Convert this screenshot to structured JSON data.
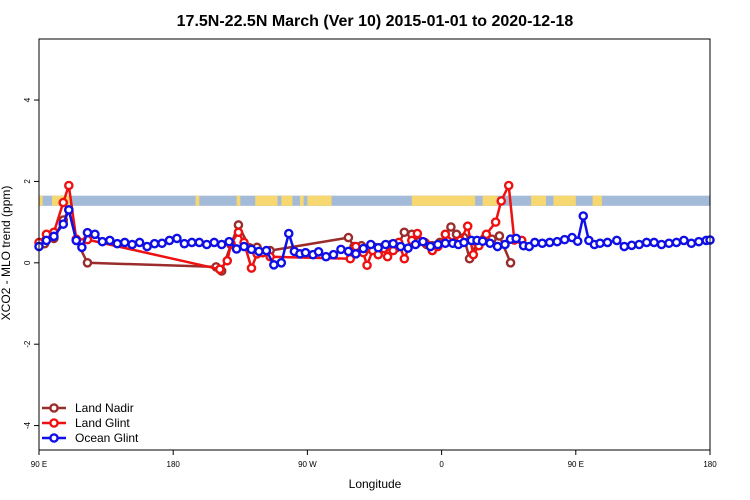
{
  "chart_data": {
    "type": "line",
    "title": "17.5N-22.5N March (Ver 10)   2015-01-01 to 2020-12-18",
    "xlabel": "Longitude",
    "ylabel": "XCO2 - MLO trend (ppm)",
    "xlim": [
      -180,
      180
    ],
    "ylim": [
      -4.6,
      5.5
    ],
    "x_ticks": [
      {
        "value": -180,
        "label": "90 E"
      },
      {
        "value": -108,
        "label": "180"
      },
      {
        "value": -36,
        "label": "90 W"
      },
      {
        "value": 36,
        "label": "0"
      },
      {
        "value": 108,
        "label": "90 E"
      },
      {
        "value": 180,
        "label": "180"
      }
    ],
    "y_ticks": [
      {
        "value": -4,
        "label": "-4"
      },
      {
        "value": -2,
        "label": "-2"
      },
      {
        "value": 0,
        "label": "0"
      },
      {
        "value": 2,
        "label": "2"
      },
      {
        "value": 4,
        "label": "4"
      }
    ],
    "grid": false,
    "legend_position": "bottom-left",
    "land_mask": {
      "y_range": [
        1.4,
        1.65
      ],
      "ocean_color": "#a3bad9",
      "land_color": "#f7d76f",
      "land_segments": [
        [
          -180,
          -178
        ],
        [
          -173,
          -163
        ],
        [
          -96,
          -94
        ],
        [
          -74,
          -72
        ],
        [
          -64,
          -52
        ],
        [
          -50,
          -44
        ],
        [
          -40,
          -38
        ],
        [
          -36,
          -27
        ],
        [
          -28,
          -23
        ],
        [
          20,
          54
        ],
        [
          58,
          66
        ],
        [
          84,
          92
        ],
        [
          96,
          108
        ],
        [
          117,
          122
        ]
      ]
    },
    "series": [
      {
        "name": "Land Nadir",
        "color": "#9b2c2c",
        "points": [
          [
            -177,
            0.47
          ],
          [
            -172,
            0.6
          ],
          [
            -167,
            1.05
          ],
          [
            -164,
            1.3
          ],
          [
            -160,
            0.55
          ],
          [
            -154,
            0.0
          ],
          [
            -85,
            -0.1
          ],
          [
            -82,
            -0.2
          ],
          [
            -77,
            0.45
          ],
          [
            -73,
            0.93
          ],
          [
            -67,
            0.37
          ],
          [
            -63,
            0.38
          ],
          [
            -60,
            0.25
          ],
          [
            -56,
            0.3
          ],
          [
            -14,
            0.62
          ],
          [
            -11,
            0.4
          ],
          [
            -7,
            0.42
          ],
          [
            -3,
            0.35
          ],
          [
            0,
            0.38
          ],
          [
            3,
            0.37
          ],
          [
            6,
            0.38
          ],
          [
            9,
            0.45
          ],
          [
            12,
            0.38
          ],
          [
            16,
            0.75
          ],
          [
            20,
            0.7
          ],
          [
            24,
            0.52
          ],
          [
            28,
            0.45
          ],
          [
            31,
            0.42
          ],
          [
            35,
            0.5
          ],
          [
            41,
            0.88
          ],
          [
            44,
            0.7
          ],
          [
            48,
            0.62
          ],
          [
            51,
            0.1
          ],
          [
            55,
            0.5
          ],
          [
            59,
            0.6
          ],
          [
            63,
            0.58
          ],
          [
            67,
            0.66
          ],
          [
            73,
            0.0
          ]
        ]
      },
      {
        "name": "Land Glint",
        "color": "#ee1111",
        "points": [
          [
            -180,
            0.5
          ],
          [
            -176,
            0.7
          ],
          [
            -172,
            0.75
          ],
          [
            -167,
            1.48
          ],
          [
            -164,
            1.9
          ],
          [
            -160,
            0.58
          ],
          [
            -154,
            0.57
          ],
          [
            -83,
            -0.16
          ],
          [
            -79,
            0.05
          ],
          [
            -77,
            0.47
          ],
          [
            -73,
            0.75
          ],
          [
            -70,
            0.5
          ],
          [
            -66,
            -0.13
          ],
          [
            -63,
            0.22
          ],
          [
            -60,
            0.25
          ],
          [
            -56,
            0.15
          ],
          [
            -13,
            0.1
          ],
          [
            -10,
            0.4
          ],
          [
            -6,
            0.25
          ],
          [
            -4,
            -0.06
          ],
          [
            -1,
            0.3
          ],
          [
            2,
            0.2
          ],
          [
            5,
            0.35
          ],
          [
            7,
            0.15
          ],
          [
            10,
            0.3
          ],
          [
            13,
            0.5
          ],
          [
            16,
            0.1
          ],
          [
            20,
            0.55
          ],
          [
            23,
            0.72
          ],
          [
            27,
            0.5
          ],
          [
            31,
            0.3
          ],
          [
            34,
            0.4
          ],
          [
            38,
            0.7
          ],
          [
            43,
            0.5
          ],
          [
            46,
            0.55
          ],
          [
            50,
            0.9
          ],
          [
            53,
            0.2
          ],
          [
            56,
            0.42
          ],
          [
            60,
            0.7
          ],
          [
            65,
            1.0
          ],
          [
            68,
            1.52
          ],
          [
            72,
            1.9
          ],
          [
            75,
            0.56
          ],
          [
            79,
            0.55
          ]
        ]
      },
      {
        "name": "Ocean Glint",
        "color": "#0f0fe6",
        "points": [
          [
            -180,
            0.4
          ],
          [
            -176,
            0.55
          ],
          [
            -172,
            0.65
          ],
          [
            -167,
            0.95
          ],
          [
            -164,
            1.3
          ],
          [
            -160,
            0.55
          ],
          [
            -157,
            0.38
          ],
          [
            -154,
            0.74
          ],
          [
            -150,
            0.7
          ],
          [
            -146,
            0.52
          ],
          [
            -142,
            0.55
          ],
          [
            -138,
            0.47
          ],
          [
            -134,
            0.5
          ],
          [
            -130,
            0.45
          ],
          [
            -126,
            0.5
          ],
          [
            -122,
            0.4
          ],
          [
            -118,
            0.47
          ],
          [
            -114,
            0.48
          ],
          [
            -110,
            0.55
          ],
          [
            -106,
            0.6
          ],
          [
            -102,
            0.47
          ],
          [
            -98,
            0.5
          ],
          [
            -94,
            0.5
          ],
          [
            -90,
            0.45
          ],
          [
            -86,
            0.5
          ],
          [
            -82,
            0.45
          ],
          [
            -78,
            0.52
          ],
          [
            -74,
            0.34
          ],
          [
            -70,
            0.4
          ],
          [
            -66,
            0.33
          ],
          [
            -62,
            0.28
          ],
          [
            -58,
            0.3
          ],
          [
            -54,
            -0.05
          ],
          [
            -50,
            0.0
          ],
          [
            -46,
            0.72
          ],
          [
            -43,
            0.28
          ],
          [
            -40,
            0.22
          ],
          [
            -37,
            0.25
          ],
          [
            -33,
            0.2
          ],
          [
            -30,
            0.27
          ],
          [
            -26,
            0.15
          ],
          [
            -22,
            0.2
          ],
          [
            -18,
            0.33
          ],
          [
            -14,
            0.28
          ],
          [
            -10,
            0.22
          ],
          [
            -6,
            0.35
          ],
          [
            -2,
            0.45
          ],
          [
            2,
            0.37
          ],
          [
            6,
            0.45
          ],
          [
            10,
            0.47
          ],
          [
            14,
            0.4
          ],
          [
            18,
            0.36
          ],
          [
            22,
            0.45
          ],
          [
            26,
            0.52
          ],
          [
            30,
            0.4
          ],
          [
            34,
            0.45
          ],
          [
            38,
            0.48
          ],
          [
            42,
            0.48
          ],
          [
            45,
            0.45
          ],
          [
            48,
            0.5
          ],
          [
            52,
            0.55
          ],
          [
            55,
            0.55
          ],
          [
            58,
            0.53
          ],
          [
            62,
            0.48
          ],
          [
            66,
            0.4
          ],
          [
            70,
            0.45
          ],
          [
            73,
            0.58
          ],
          [
            76,
            0.6
          ],
          [
            80,
            0.42
          ],
          [
            83,
            0.4
          ],
          [
            86,
            0.5
          ],
          [
            90,
            0.48
          ],
          [
            94,
            0.5
          ],
          [
            98,
            0.52
          ],
          [
            102,
            0.57
          ],
          [
            106,
            0.62
          ],
          [
            109,
            0.53
          ],
          [
            112,
            1.15
          ],
          [
            115,
            0.55
          ],
          [
            118,
            0.45
          ],
          [
            121,
            0.48
          ],
          [
            125,
            0.5
          ],
          [
            130,
            0.55
          ],
          [
            134,
            0.4
          ],
          [
            138,
            0.43
          ],
          [
            142,
            0.45
          ],
          [
            146,
            0.5
          ],
          [
            150,
            0.5
          ],
          [
            154,
            0.45
          ],
          [
            158,
            0.48
          ],
          [
            162,
            0.5
          ],
          [
            166,
            0.55
          ],
          [
            170,
            0.48
          ],
          [
            174,
            0.52
          ],
          [
            178,
            0.55
          ],
          [
            180,
            0.56
          ]
        ]
      }
    ]
  }
}
